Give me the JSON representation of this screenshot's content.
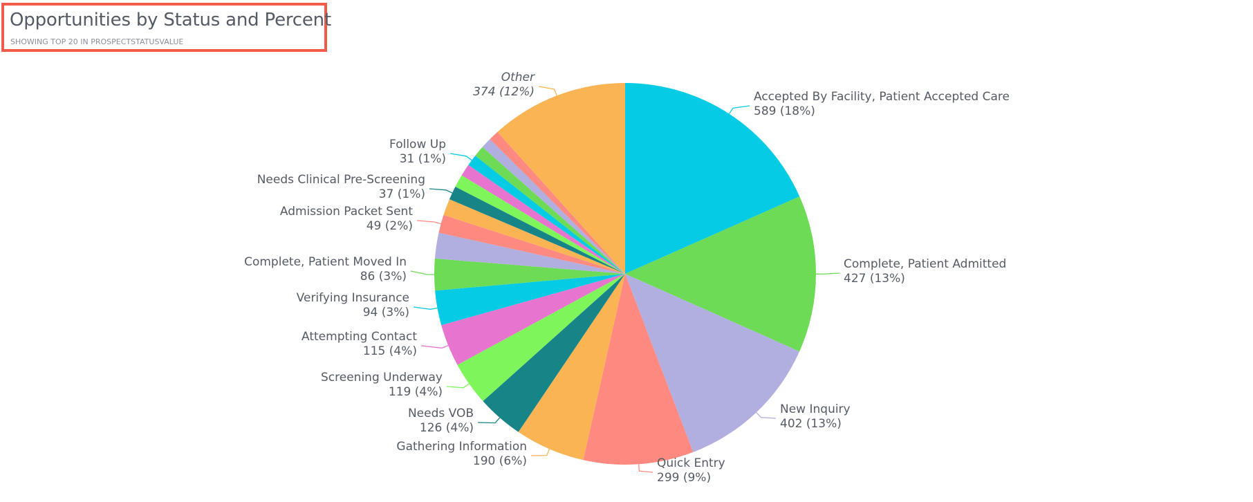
{
  "header": {
    "title": "Opportunities by Status and Percent",
    "subtitle": "SHOWING TOP 20 IN PROSPECTSTATUSVALUE"
  },
  "chart_data": {
    "type": "pie",
    "title": "Opportunities by Status and Percent",
    "subtitle": "SHOWING TOP 20 IN PROSPECTSTATUSVALUE",
    "slices": [
      {
        "label": "Accepted By Facility, Patient Accepted Care",
        "value": 589,
        "percent_label": "589 (18%)",
        "color": "#06cbe5",
        "labeled": true
      },
      {
        "label": "Complete, Patient Admitted",
        "value": 427,
        "percent_label": "427 (13%)",
        "color": "#6ddb56",
        "labeled": true
      },
      {
        "label": "New Inquiry",
        "value": 402,
        "percent_label": "402 (13%)",
        "color": "#b0afdf",
        "labeled": true
      },
      {
        "label": "Quick Entry",
        "value": 299,
        "percent_label": "299 (9%)",
        "color": "#fe8981",
        "labeled": true
      },
      {
        "label": "Gathering Information",
        "value": 190,
        "percent_label": "190 (6%)",
        "color": "#fbb454",
        "labeled": true
      },
      {
        "label": "Needs VOB",
        "value": 126,
        "percent_label": "126 (4%)",
        "color": "#178487",
        "labeled": true
      },
      {
        "label": "Screening Underway",
        "value": 119,
        "percent_label": "119 (4%)",
        "color": "#7ef55a",
        "labeled": true
      },
      {
        "label": "Attempting Contact",
        "value": 115,
        "percent_label": "115 (4%)",
        "color": "#e774cf",
        "labeled": true
      },
      {
        "label": "Verifying Insurance",
        "value": 94,
        "percent_label": "94 (3%)",
        "color": "#06cbe5",
        "labeled": true
      },
      {
        "label": "Complete, Patient Moved In",
        "value": 86,
        "percent_label": "86 (3%)",
        "color": "#6ddb56",
        "labeled": true
      },
      {
        "label": "",
        "value": 70,
        "percent_label": "",
        "color": "#b0afdf",
        "labeled": false
      },
      {
        "label": "Admission Packet Sent",
        "value": 49,
        "percent_label": "49 (2%)",
        "color": "#fe8981",
        "labeled": true
      },
      {
        "label": "",
        "value": 45,
        "percent_label": "",
        "color": "#fbb454",
        "labeled": false
      },
      {
        "label": "Needs Clinical Pre-Screening",
        "value": 37,
        "percent_label": "37 (1%)",
        "color": "#178487",
        "labeled": true
      },
      {
        "label": "",
        "value": 35,
        "percent_label": "",
        "color": "#7ef55a",
        "labeled": false
      },
      {
        "label": "",
        "value": 33,
        "percent_label": "",
        "color": "#e774cf",
        "labeled": false
      },
      {
        "label": "Follow Up",
        "value": 31,
        "percent_label": "31 (1%)",
        "color": "#06cbe5",
        "labeled": true
      },
      {
        "label": "",
        "value": 30,
        "percent_label": "",
        "color": "#6ddb56",
        "labeled": false
      },
      {
        "label": "",
        "value": 29,
        "percent_label": "",
        "color": "#b0afdf",
        "labeled": false
      },
      {
        "label": "",
        "value": 28,
        "percent_label": "",
        "color": "#fe8981",
        "labeled": false
      },
      {
        "label": "Other",
        "value": 374,
        "percent_label": "374 (12%)",
        "color": "#fbb454",
        "labeled": true,
        "italic": true
      }
    ]
  }
}
